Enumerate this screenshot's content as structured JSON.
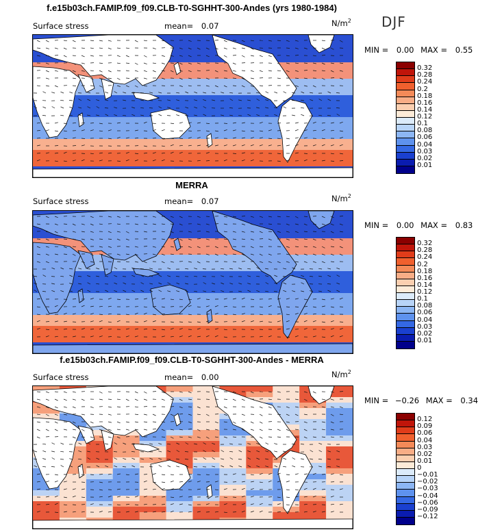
{
  "season": "DJF",
  "panels": [
    {
      "title": "f.e15b03ch.FAMIP.f09_f09.CLB-T0-SGHHT-300-Andes (yrs 1980-1984)",
      "variable": "Surface stress",
      "mean_label": "mean=",
      "mean_value": "0.07",
      "unit": "N/m",
      "unit_exp": "2",
      "min_label": "MIN =",
      "min_value": "0.00",
      "max_label": "MAX =",
      "max_value": "0.55",
      "levels": [
        "0.32",
        "0.28",
        "0.24",
        "0.2",
        "0.18",
        "0.16",
        "0.14",
        "0.12",
        "0.1",
        "0.08",
        "0.06",
        "0.04",
        "0.03",
        "0.02",
        "0.01"
      ],
      "colors": [
        "#8b0000",
        "#c0150a",
        "#e03c1a",
        "#f0602e",
        "#f48a58",
        "#f8ad86",
        "#fbcfb0",
        "#fdebd8",
        "#dcebfa",
        "#b8d4f8",
        "#8cb6f4",
        "#5e92ee",
        "#3468e4",
        "#1a40d0",
        "#0a1cb0",
        "#00008b"
      ]
    },
    {
      "title": "MERRA",
      "variable": "Surface stress",
      "mean_label": "mean=",
      "mean_value": "0.07",
      "unit": "N/m",
      "unit_exp": "2",
      "min_label": "MIN =",
      "min_value": "0.00",
      "max_label": "MAX =",
      "max_value": "0.83",
      "levels": [
        "0.32",
        "0.28",
        "0.24",
        "0.2",
        "0.18",
        "0.16",
        "0.14",
        "0.12",
        "0.1",
        "0.08",
        "0.06",
        "0.04",
        "0.03",
        "0.02",
        "0.01"
      ],
      "colors": [
        "#8b0000",
        "#c0150a",
        "#e03c1a",
        "#f0602e",
        "#f48a58",
        "#f8ad86",
        "#fbcfb0",
        "#fdebd8",
        "#dcebfa",
        "#b8d4f8",
        "#8cb6f4",
        "#5e92ee",
        "#3468e4",
        "#1a40d0",
        "#0a1cb0",
        "#00008b"
      ]
    },
    {
      "title": "f.e15b03ch.FAMIP.f09_f09.CLB-T0-SGHHT-300-Andes - MERRA",
      "variable": "Surface stress",
      "mean_label": "mean=",
      "mean_value": "0.00",
      "unit": "N/m",
      "unit_exp": "2",
      "min_label": "MIN =",
      "min_value": "−0.26",
      "max_label": "MAX =",
      "max_value": "0.34",
      "levels": [
        "0.12",
        "0.09",
        "0.06",
        "0.04",
        "0.03",
        "0.02",
        "0.01",
        "0",
        "−0.01",
        "−0.02",
        "−0.03",
        "−0.04",
        "−0.06",
        "−0.09",
        "−0.12"
      ],
      "colors": [
        "#8b0000",
        "#c0150a",
        "#e03c1a",
        "#f0602e",
        "#f48a58",
        "#f8ad86",
        "#fbcfb0",
        "#fdebd8",
        "#dcebfa",
        "#b8d4f8",
        "#8cb6f4",
        "#5e92ee",
        "#3468e4",
        "#1a40d0",
        "#0a1cb0",
        "#00008b"
      ]
    }
  ]
}
